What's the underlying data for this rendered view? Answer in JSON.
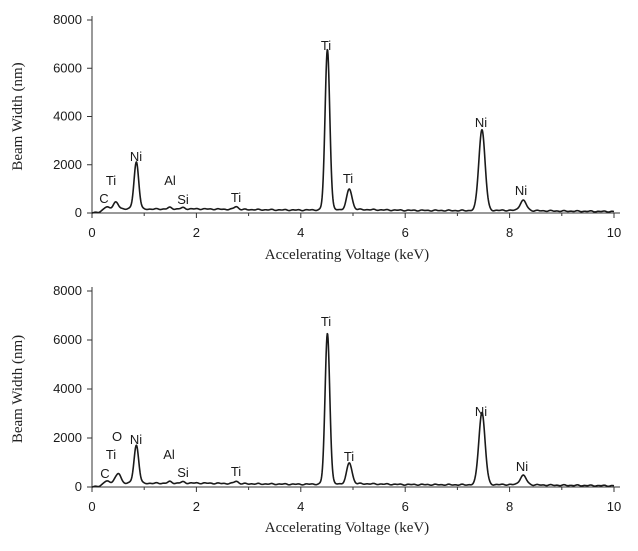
{
  "chart_data": [
    {
      "type": "line",
      "xlabel": "Accelerating Voltage (keV)",
      "ylabel": "Beam Width (nm)",
      "xlim": [
        0,
        10
      ],
      "ylim": [
        0,
        8000
      ],
      "xticks": [
        0,
        2,
        4,
        6,
        8,
        10
      ],
      "yticks": [
        0,
        2000,
        4000,
        6000,
        8000
      ],
      "grid": false,
      "color": "#1a1a1a",
      "baseline": {
        "x": [
          0,
          0.5,
          1.0,
          2.0,
          3.0,
          4.0,
          5.0,
          6.0,
          7.0,
          8.0,
          9.0,
          10.0
        ],
        "y": [
          0,
          180,
          160,
          170,
          140,
          120,
          150,
          110,
          100,
          110,
          80,
          60
        ]
      },
      "peaks": [
        {
          "label": "C",
          "x": 0.28,
          "y": 150,
          "width": 0.05
        },
        {
          "label": "Ti",
          "x": 0.45,
          "y": 280,
          "width": 0.05
        },
        {
          "label": "Ni",
          "x": 0.85,
          "y": 1950,
          "width": 0.045
        },
        {
          "label": "Al",
          "x": 1.49,
          "y": 60,
          "width": 0.04
        },
        {
          "label": "Si",
          "x": 1.74,
          "y": 50,
          "width": 0.04
        },
        {
          "label": "Ti",
          "x": 2.76,
          "y": 120,
          "width": 0.04
        },
        {
          "label": "Ti",
          "x": 4.51,
          "y": 6650,
          "width": 0.045
        },
        {
          "label": "Ti",
          "x": 4.93,
          "y": 850,
          "width": 0.05
        },
        {
          "label": "Ni",
          "x": 7.47,
          "y": 3350,
          "width": 0.06
        },
        {
          "label": "Ni",
          "x": 8.26,
          "y": 420,
          "width": 0.06
        }
      ]
    },
    {
      "type": "line",
      "xlabel": "Accelerating Voltage (keV)",
      "ylabel": "Beam Width (nm)",
      "xlim": [
        0,
        10
      ],
      "ylim": [
        0,
        8000
      ],
      "xticks": [
        0,
        2,
        4,
        6,
        8,
        10
      ],
      "yticks": [
        0,
        2000,
        4000,
        6000,
        8000
      ],
      "grid": false,
      "color": "#1a1a1a",
      "baseline": {
        "x": [
          0,
          0.5,
          1.0,
          2.0,
          3.0,
          4.0,
          5.0,
          6.0,
          7.0,
          8.0,
          9.0,
          10.0
        ],
        "y": [
          0,
          170,
          150,
          160,
          130,
          110,
          140,
          100,
          90,
          100,
          70,
          50
        ]
      },
      "peaks": [
        {
          "label": "C",
          "x": 0.28,
          "y": 150,
          "width": 0.05
        },
        {
          "label": "Ti",
          "x": 0.45,
          "y": 180,
          "width": 0.05
        },
        {
          "label": "O",
          "x": 0.52,
          "y": 300,
          "width": 0.04
        },
        {
          "label": "Ni",
          "x": 0.85,
          "y": 1550,
          "width": 0.045
        },
        {
          "label": "Al",
          "x": 1.49,
          "y": 60,
          "width": 0.04
        },
        {
          "label": "Si",
          "x": 1.74,
          "y": 50,
          "width": 0.04
        },
        {
          "label": "Ti",
          "x": 2.76,
          "y": 100,
          "width": 0.04
        },
        {
          "label": "Ti",
          "x": 4.51,
          "y": 6150,
          "width": 0.045
        },
        {
          "label": "Ti",
          "x": 4.93,
          "y": 850,
          "width": 0.05
        },
        {
          "label": "Ni",
          "x": 7.47,
          "y": 2950,
          "width": 0.06
        },
        {
          "label": "Ni",
          "x": 8.26,
          "y": 380,
          "width": 0.06
        }
      ]
    }
  ]
}
